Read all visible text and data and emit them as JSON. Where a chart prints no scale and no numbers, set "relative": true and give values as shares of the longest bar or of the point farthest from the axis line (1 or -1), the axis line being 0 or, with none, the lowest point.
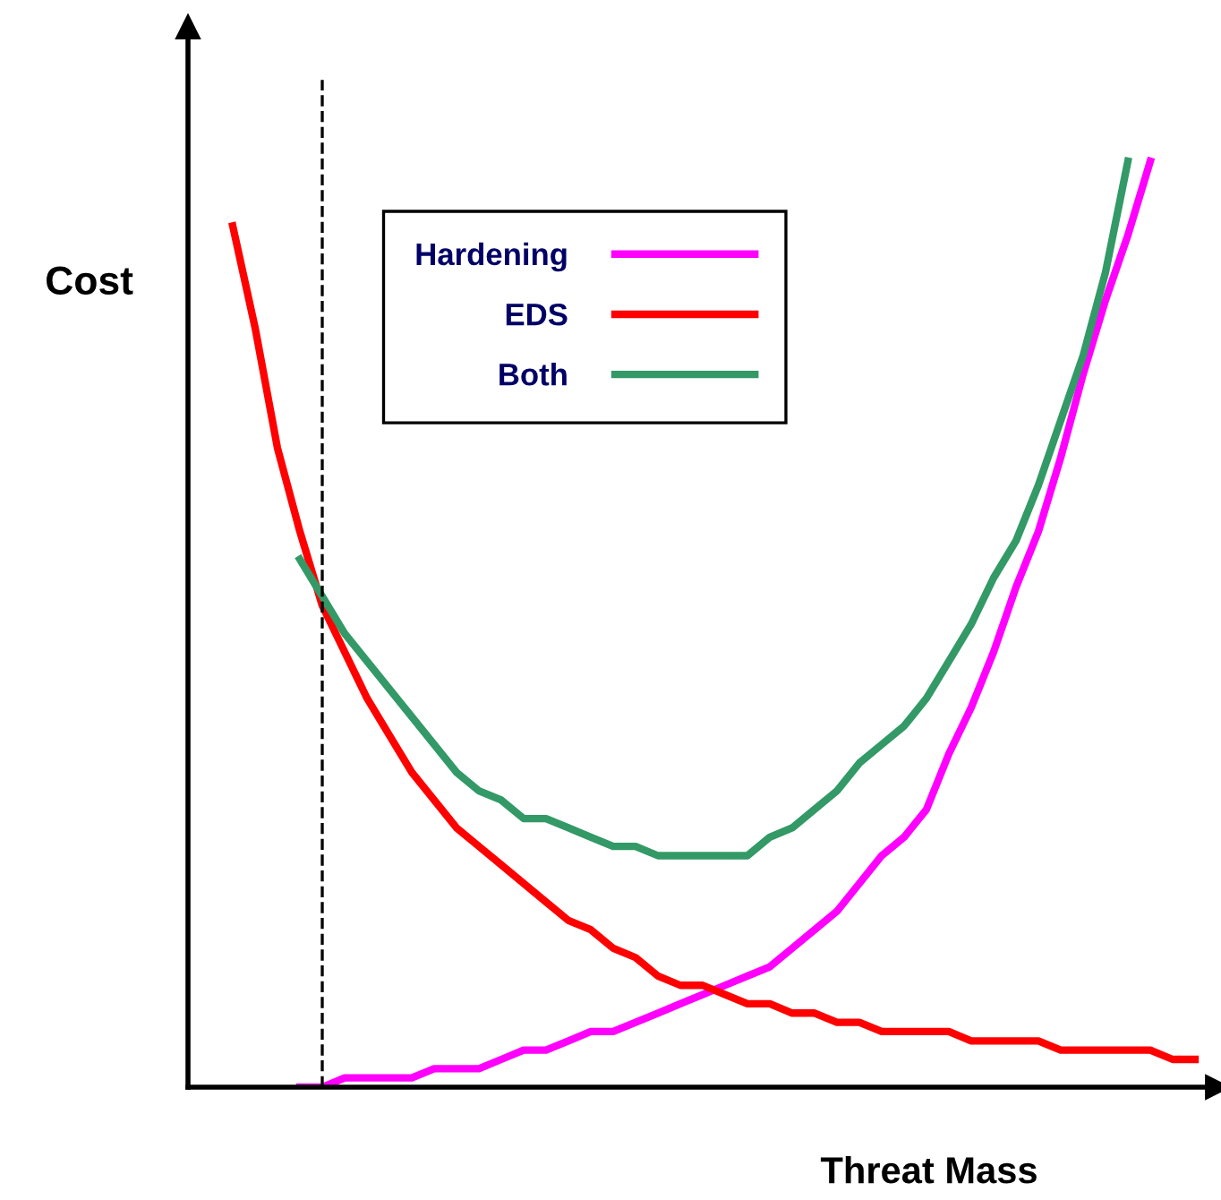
{
  "chart_data": {
    "type": "line",
    "relative": true,
    "xlabel": "Threat Mass",
    "ylabel": "Cost",
    "legend": "top",
    "line_style": "solid",
    "marker": "none",
    "categories": [
      null,
      null,
      null,
      null,
      null,
      null,
      null,
      null,
      null,
      null,
      null,
      null,
      null,
      null,
      null,
      null,
      null,
      null,
      null,
      null,
      null,
      null,
      null,
      null,
      null,
      null,
      null,
      null,
      null,
      null,
      null,
      null,
      null,
      null,
      null,
      null,
      null,
      null,
      null,
      null,
      null,
      null,
      null,
      null,
      null,
      null,
      null
    ],
    "series": [
      {
        "name": "Hardening",
        "color": "#ff00ff",
        "values": [
          null,
          null,
          null,
          null,
          null,
          0,
          0.0,
          0.01,
          0.01,
          0.01,
          0.01,
          0.02,
          0.02,
          0.02,
          0.03,
          0.04,
          0.04,
          0.05,
          0.06,
          0.06,
          0.07,
          0.08,
          0.09,
          0.1,
          0.11,
          0.12,
          0.13,
          0.15,
          0.17,
          0.19,
          0.22,
          0.25,
          0.27,
          0.3,
          0.36,
          0.41,
          0.47,
          0.54,
          0.6,
          0.68,
          0.77,
          0.85,
          0.92,
          1.0,
          null,
          null,
          null
        ]
      },
      {
        "name": "EDS",
        "color": "#ff0000",
        "values": [
          null,
          null,
          0.93,
          0.82,
          0.69,
          0.6,
          0.52,
          0.47,
          0.42,
          0.38,
          0.34,
          0.31,
          0.28,
          0.26,
          0.24,
          0.22,
          0.2,
          0.18,
          0.17,
          0.15,
          0.14,
          0.12,
          0.11,
          0.11,
          0.1,
          0.09,
          0.09,
          0.08,
          0.08,
          0.07,
          0.07,
          0.06,
          0.06,
          0.06,
          0.06,
          0.05,
          0.05,
          0.05,
          0.05,
          0.04,
          0.04,
          0.04,
          0.04,
          0.04,
          0.03,
          0.03,
          null
        ]
      },
      {
        "name": "Both",
        "color": "#339966",
        "values": [
          null,
          null,
          null,
          null,
          null,
          0.57,
          0.53,
          0.49,
          0.46,
          0.43,
          0.4,
          0.37,
          0.34,
          0.32,
          0.31,
          0.29,
          0.29,
          0.28,
          0.27,
          0.26,
          0.26,
          0.25,
          0.25,
          0.25,
          0.25,
          0.25,
          0.27,
          0.28,
          0.3,
          0.32,
          0.35,
          0.37,
          0.39,
          0.42,
          0.46,
          0.5,
          0.55,
          0.59,
          0.65,
          0.72,
          0.79,
          0.88,
          1.0,
          null,
          null,
          null,
          null
        ]
      }
    ]
  }
}
